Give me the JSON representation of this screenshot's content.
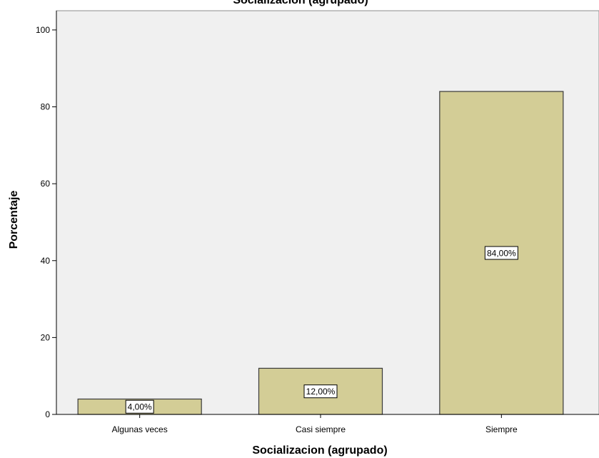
{
  "chart_data": {
    "type": "bar",
    "title": "Socialización (agrupado)",
    "xlabel": "Socializacion (agrupado)",
    "ylabel": "Porcentaje",
    "categories": [
      "Algunas veces",
      "Casi siempre",
      "Siempre"
    ],
    "values": [
      4,
      12,
      84
    ],
    "data_labels": [
      "4,00%",
      "12,00%",
      "84,00%"
    ],
    "yticks": [
      0,
      20,
      40,
      60,
      80,
      100
    ],
    "ylim": [
      0,
      105
    ],
    "grid": false,
    "legend": "none",
    "colors": {
      "bar_fill": "#d3cd96",
      "bar_stroke": "#3a3a3a",
      "plot_background": "#f0f0f0",
      "axis": "#000000"
    }
  }
}
